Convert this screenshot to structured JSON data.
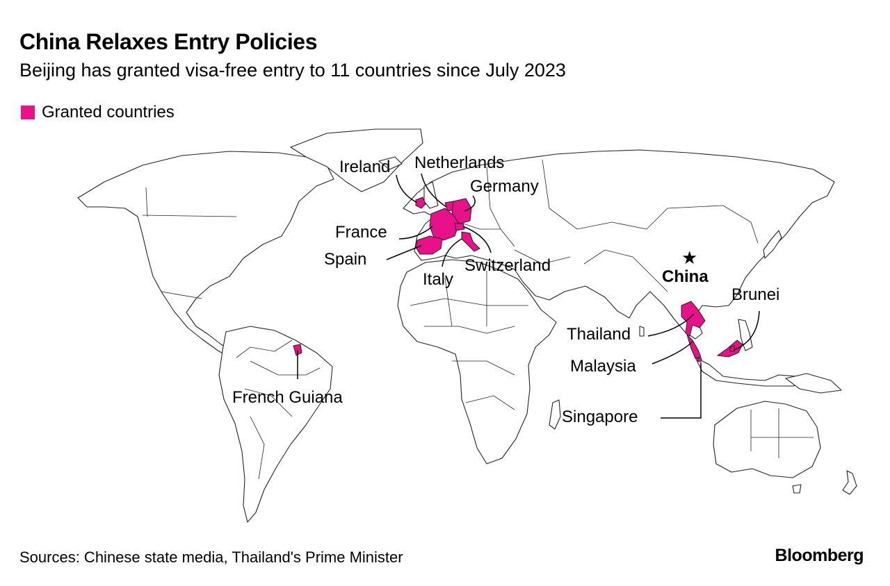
{
  "title": "China Relaxes Entry Policies",
  "subtitle": "Beijing has granted visa-free entry to 11 countries since July 2023",
  "legend": {
    "label": "Granted countries",
    "color": "#e8118a"
  },
  "highlight_color": "#e8118a",
  "labels": {
    "ireland": "Ireland",
    "netherlands": "Netherlands",
    "germany": "Germany",
    "france": "France",
    "spain": "Spain",
    "switzerland": "Switzerland",
    "italy": "Italy",
    "china": "China",
    "brunei": "Brunei",
    "thailand": "Thailand",
    "malaysia": "Malaysia",
    "singapore": "Singapore",
    "french_guiana": "French Guiana"
  },
  "china_marker_icon": "star-icon",
  "source": "Sources: Chinese state media, Thailand's Prime Minister",
  "brand": "Bloomberg"
}
